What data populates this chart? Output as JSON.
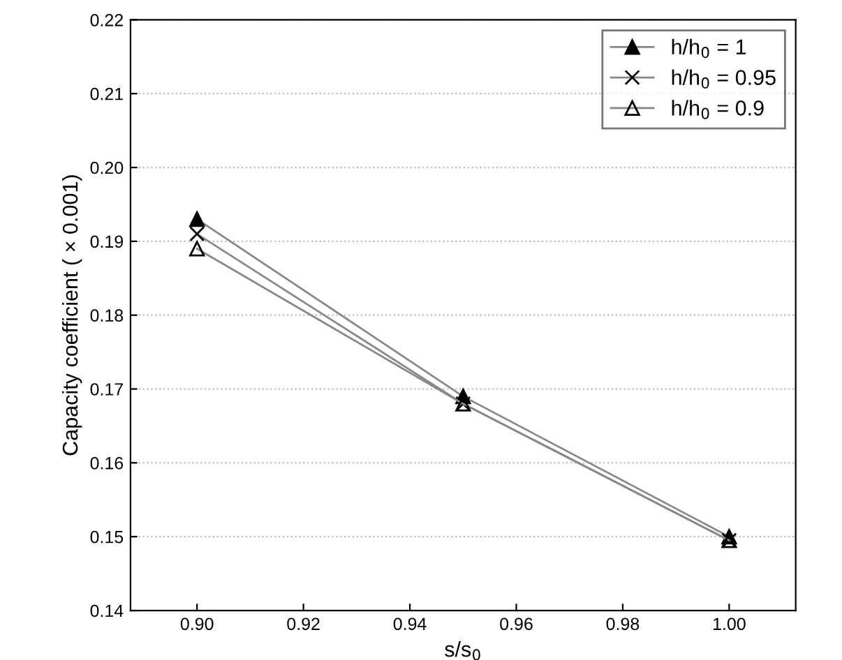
{
  "chart_data": {
    "type": "line",
    "xlabel": "s/s$_{0}$",
    "ylabel": "Capacity coefficient ( × 0.001)",
    "x": [
      0.9,
      0.95,
      1.0
    ],
    "series": [
      {
        "name": "h/h$_{0}$ = 1",
        "color": "#000000",
        "marker": "triangle",
        "values": [
          0.193,
          0.169,
          0.15
        ]
      },
      {
        "name": "h/h$_{0}$ = 0.95",
        "color": "#000000",
        "marker": "cross",
        "values": [
          0.191,
          0.168,
          0.1495
        ]
      },
      {
        "name": "h/h$_{0}$ = 0.9",
        "color": "#000000",
        "marker": "triangle",
        "values": [
          0.189,
          0.168,
          0.1495
        ]
      }
    ],
    "xlim": [
      0.8875,
      1.0125
    ],
    "xticks": [
      {
        "value": 0.9,
        "label": "0.90"
      },
      {
        "value": 0.92,
        "label": "0.92"
      },
      {
        "value": 0.94,
        "label": "0.94"
      },
      {
        "value": 0.96,
        "label": "0.96"
      },
      {
        "value": 0.98,
        "label": "0.98"
      },
      {
        "value": 1.0,
        "label": "1.00"
      }
    ],
    "ylim": [
      0.14,
      0.22
    ],
    "yticks": [
      {
        "value": 0.14,
        "label": "0.14"
      },
      {
        "value": 0.15,
        "label": "0.15"
      },
      {
        "value": 0.16,
        "label": "0.16"
      },
      {
        "value": 0.17,
        "label": "0.17"
      },
      {
        "value": 0.18,
        "label": "0.18"
      },
      {
        "value": 0.19,
        "label": "0.19"
      },
      {
        "value": 0.2,
        "label": "0.20"
      },
      {
        "value": 0.21,
        "label": "0.21"
      },
      {
        "value": 0.22,
        "label": "0.22"
      }
    ],
    "grid": "y",
    "legend": "top right",
    "line_style": "solid"
  }
}
